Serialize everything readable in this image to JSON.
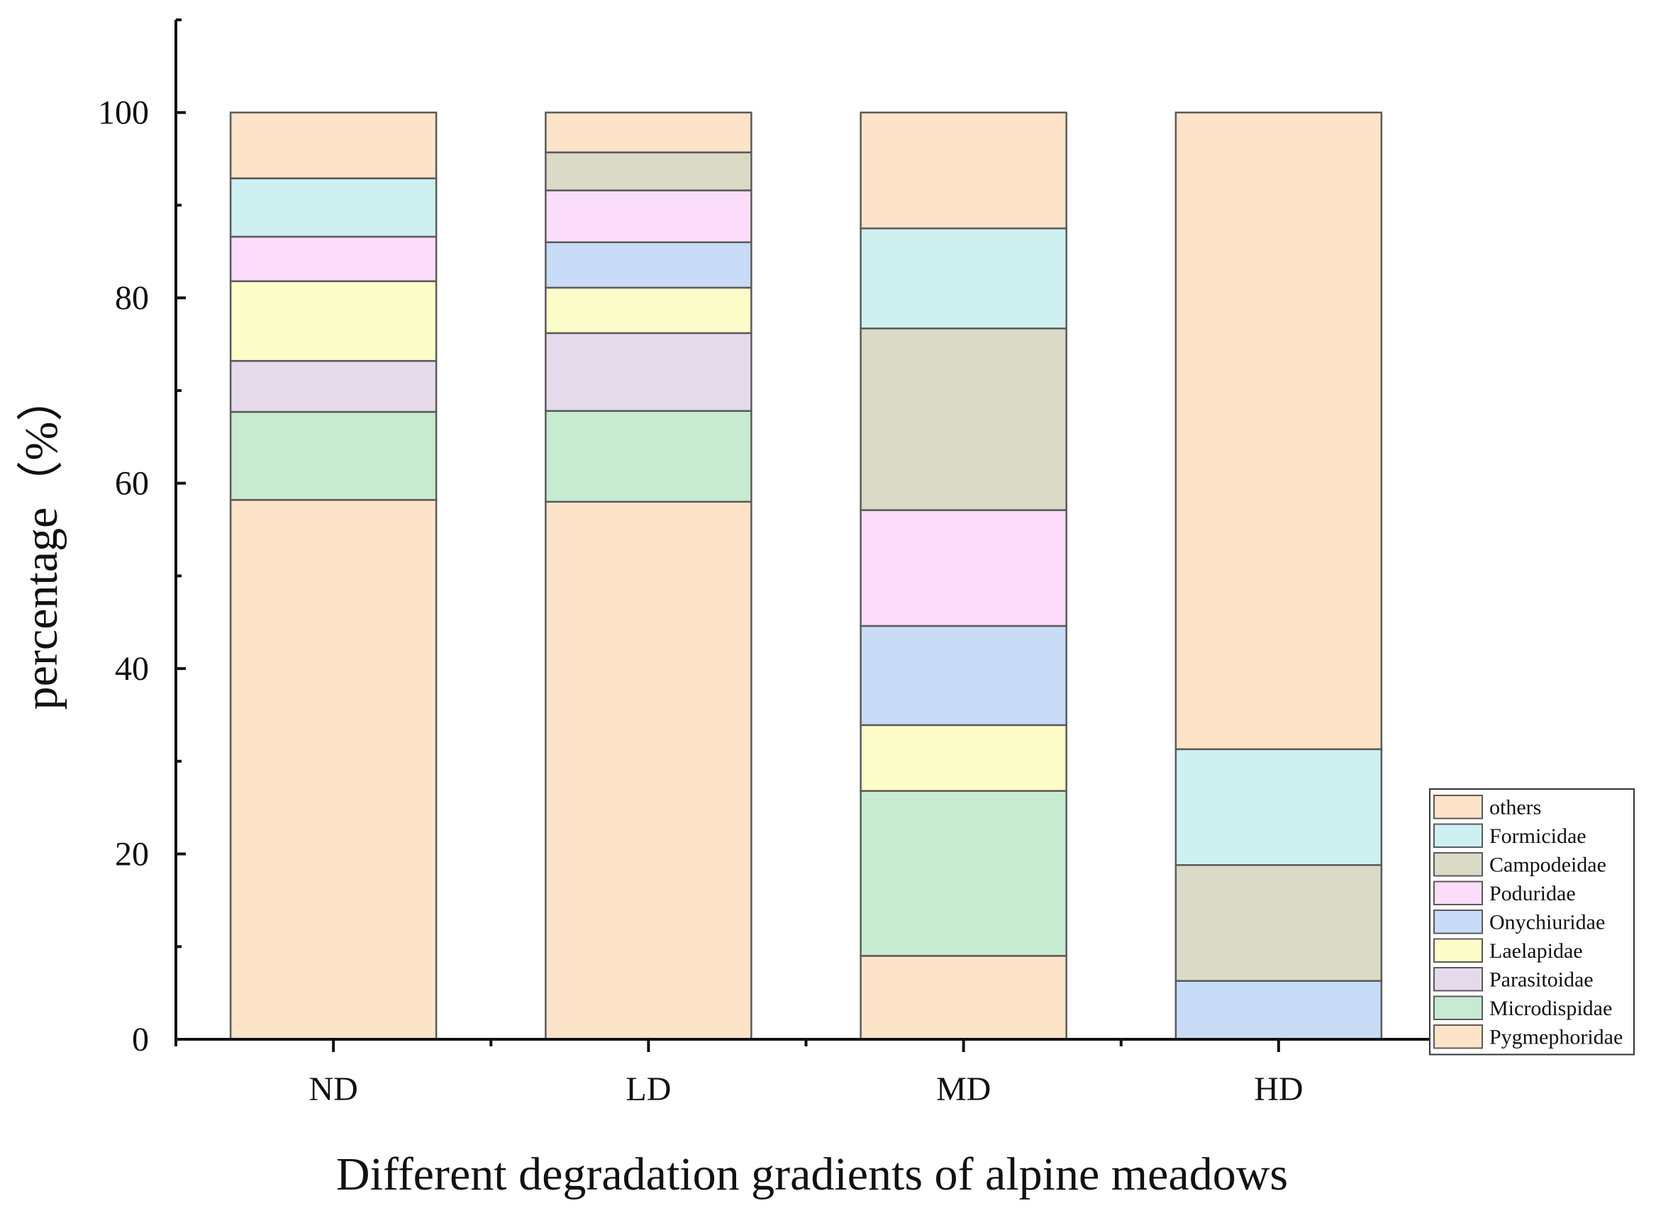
{
  "chart_data": {
    "type": "bar",
    "stacked": true,
    "title": "",
    "xlabel": "Different degradation gradients of alpine meadows",
    "ylabel": "percentage（%）",
    "ylim": [
      0,
      110
    ],
    "yticks": [
      0,
      20,
      40,
      60,
      80,
      100
    ],
    "grid": false,
    "legend_position": "bottom-right",
    "categories": [
      "ND",
      "LD",
      "MD",
      "HD"
    ],
    "series": [
      {
        "name": "Pygmephoridae",
        "color": "#FDE3C8",
        "values": [
          58.2,
          58.0,
          9.0,
          0.0
        ]
      },
      {
        "name": "Microdispidae",
        "color": "#C6EBD1",
        "values": [
          9.5,
          9.8,
          17.8,
          0.0
        ]
      },
      {
        "name": "Parasitoidae",
        "color": "#E5DAEA",
        "values": [
          5.5,
          8.4,
          0.0,
          0.0
        ]
      },
      {
        "name": "Laelapidae",
        "color": "#FDFDCA",
        "values": [
          8.6,
          4.9,
          7.1,
          0.0
        ]
      },
      {
        "name": "Onychiuridae",
        "color": "#C8DBF7",
        "values": [
          0.0,
          4.9,
          10.7,
          6.3
        ]
      },
      {
        "name": "Poduridae",
        "color": "#FCDCFB",
        "values": [
          4.8,
          5.6,
          12.5,
          0.0
        ]
      },
      {
        "name": "Campodeidae",
        "color": "#DADAC6",
        "values": [
          0.0,
          4.1,
          19.6,
          12.5
        ]
      },
      {
        "name": "Formicidae",
        "color": "#CFF0F1",
        "values": [
          6.3,
          0.0,
          10.8,
          12.5
        ]
      },
      {
        "name": "others",
        "color": "#FDE3C8",
        "values": [
          7.1,
          4.3,
          12.5,
          68.7
        ]
      }
    ]
  }
}
